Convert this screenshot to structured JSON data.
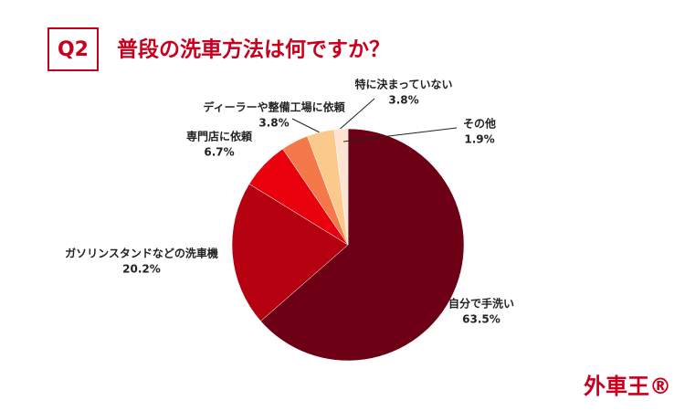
{
  "badge": "Q2",
  "logo": "外車王®",
  "chart_data": {
    "type": "pie",
    "title": "普段の洗車方法は何ですか？",
    "categories": [
      "自分で手洗い",
      "ガソリンスタンドなどの洗車機",
      "専門店に依頼",
      "ディーラーや整備工場に依頼",
      "特に決まっていない",
      "その他"
    ],
    "values": [
      63.5,
      20.2,
      6.7,
      3.8,
      3.8,
      1.9
    ],
    "value_labels": [
      "63.5%",
      "20.2%",
      "6.7%",
      "3.8%",
      "3.8%",
      "1.9%"
    ],
    "colors": [
      "#6d0015",
      "#b4000f",
      "#e8000c",
      "#f5784a",
      "#fcc98c",
      "#fde4d2"
    ]
  }
}
